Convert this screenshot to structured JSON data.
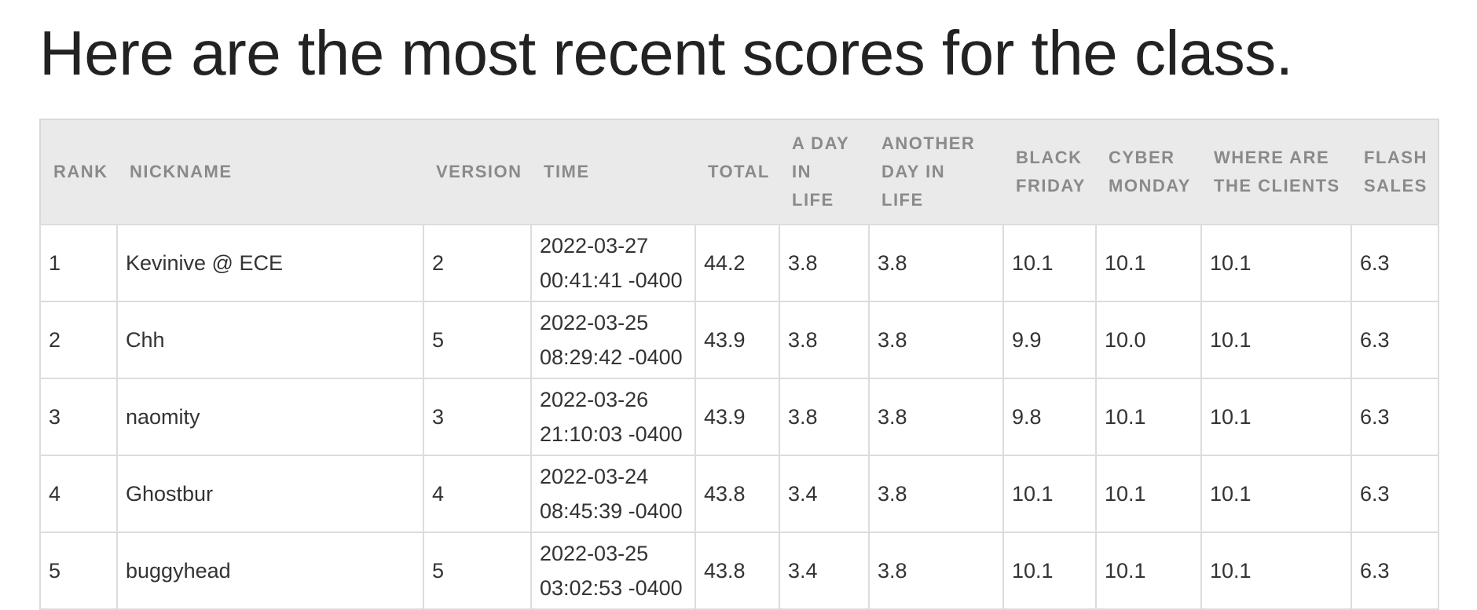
{
  "heading": "Here are the most recent scores for the class.",
  "table": {
    "columns": [
      "RANK",
      "NICKNAME",
      "VERSION",
      "TIME",
      "TOTAL",
      "A DAY IN LIFE",
      "ANOTHER DAY IN LIFE",
      "BLACK FRIDAY",
      "CYBER MONDAY",
      "WHERE ARE THE CLIENTS",
      "FLASH SALES"
    ],
    "rows": [
      {
        "rank": "1",
        "nickname": "Kevinive @ ECE",
        "version": "2",
        "time_date": "2022-03-27",
        "time_clock": "00:41:41 -0400",
        "total": "44.2",
        "a_day_in_life": "3.8",
        "another_day_in_life": "3.8",
        "black_friday": "10.1",
        "cyber_monday": "10.1",
        "where_are_the_clients": "10.1",
        "flash_sales": "6.3"
      },
      {
        "rank": "2",
        "nickname": "Chh",
        "version": "5",
        "time_date": "2022-03-25",
        "time_clock": "08:29:42 -0400",
        "total": "43.9",
        "a_day_in_life": "3.8",
        "another_day_in_life": "3.8",
        "black_friday": "9.9",
        "cyber_monday": "10.0",
        "where_are_the_clients": "10.1",
        "flash_sales": "6.3"
      },
      {
        "rank": "3",
        "nickname": "naomity",
        "version": "3",
        "time_date": "2022-03-26",
        "time_clock": "21:10:03 -0400",
        "total": "43.9",
        "a_day_in_life": "3.8",
        "another_day_in_life": "3.8",
        "black_friday": "9.8",
        "cyber_monday": "10.1",
        "where_are_the_clients": "10.1",
        "flash_sales": "6.3"
      },
      {
        "rank": "4",
        "nickname": "Ghostbur",
        "version": "4",
        "time_date": "2022-03-24",
        "time_clock": "08:45:39 -0400",
        "total": "43.8",
        "a_day_in_life": "3.4",
        "another_day_in_life": "3.8",
        "black_friday": "10.1",
        "cyber_monday": "10.1",
        "where_are_the_clients": "10.1",
        "flash_sales": "6.3"
      },
      {
        "rank": "5",
        "nickname": "buggyhead",
        "version": "5",
        "time_date": "2022-03-25",
        "time_clock": "03:02:53 -0400",
        "total": "43.8",
        "a_day_in_life": "3.4",
        "another_day_in_life": "3.8",
        "black_friday": "10.1",
        "cyber_monday": "10.1",
        "where_are_the_clients": "10.1",
        "flash_sales": "6.3"
      }
    ]
  }
}
